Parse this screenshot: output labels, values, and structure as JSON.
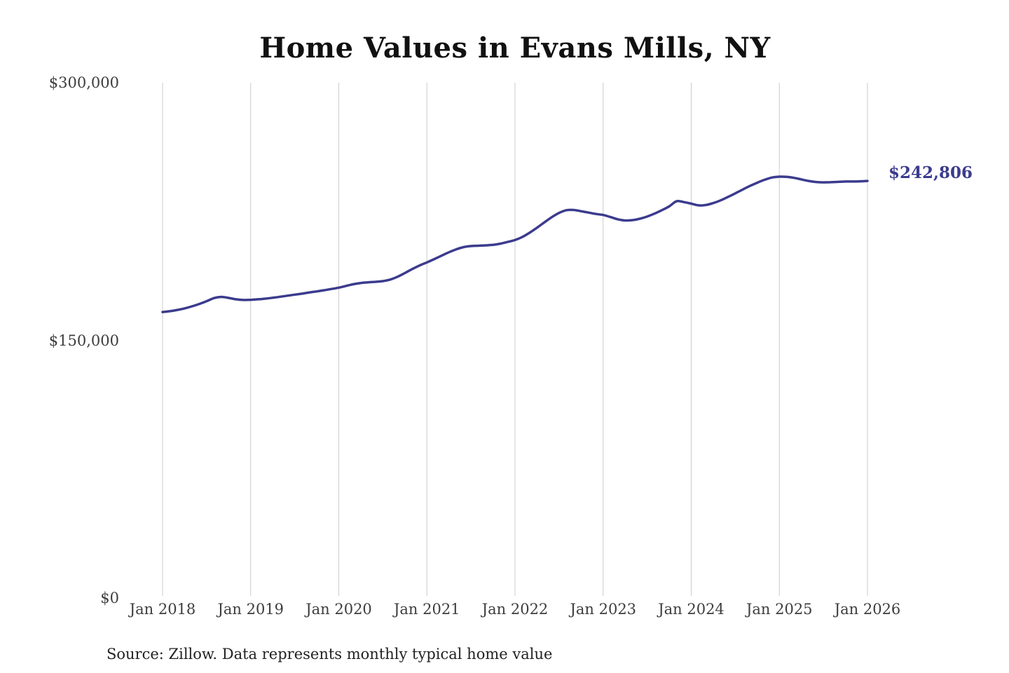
{
  "chart_data": {
    "type": "line",
    "title": "Home Values in Evans Mills, NY",
    "source": "Source: Zillow. Data represents monthly typical home value",
    "end_label": "$242,806",
    "end_value": 242806,
    "xlabel": "",
    "ylabel": "",
    "ylim": [
      0,
      300000
    ],
    "grid": "vertical-only",
    "legend": "none",
    "frequency": "monthly",
    "start_month": "2018-01",
    "values": [
      166500,
      167000,
      167700,
      168600,
      169800,
      171200,
      172800,
      174600,
      175300,
      174700,
      173900,
      173500,
      173600,
      173900,
      174300,
      174800,
      175400,
      176000,
      176600,
      177200,
      177900,
      178500,
      179200,
      179900,
      180700,
      181700,
      182700,
      183400,
      183800,
      184100,
      184500,
      185400,
      187000,
      189200,
      191500,
      193600,
      195400,
      197300,
      199300,
      201300,
      203000,
      204300,
      204900,
      205100,
      205300,
      205600,
      206300,
      207300,
      208400,
      210200,
      212700,
      215600,
      218700,
      221700,
      224200,
      225800,
      225900,
      225200,
      224400,
      223600,
      223000,
      221800,
      220500,
      219800,
      220000,
      220800,
      222100,
      223800,
      225800,
      228000,
      231000,
      230500,
      229600,
      228600,
      228800,
      229900,
      231500,
      233500,
      235600,
      237800,
      239900,
      241800,
      243500,
      244800,
      245300,
      245200,
      244600,
      243700,
      242800,
      242200,
      242000,
      242100,
      242300,
      242500,
      242500,
      242600,
      242806
    ],
    "x_ticks": {
      "labels": [
        "Jan 2018",
        "Jan 2019",
        "Jan 2020",
        "Jan 2021",
        "Jan 2022",
        "Jan 2023",
        "Jan 2024",
        "Jan 2025",
        "Jan 2026"
      ],
      "month_indices": [
        0,
        12,
        24,
        36,
        48,
        60,
        72,
        84,
        96
      ]
    },
    "y_ticks": [
      {
        "label": "$300,000",
        "value": 300000
      },
      {
        "label": "$150,000",
        "value": 150000
      },
      {
        "label": "$0",
        "value": 0
      }
    ],
    "colors": {
      "line": "#3b3b8e",
      "grid": "#cccccc",
      "tick_label": "#3d3d3d",
      "title": "#111111",
      "end_label": "#3b3b8e",
      "source": "#222222",
      "background": "#ffffff"
    }
  }
}
